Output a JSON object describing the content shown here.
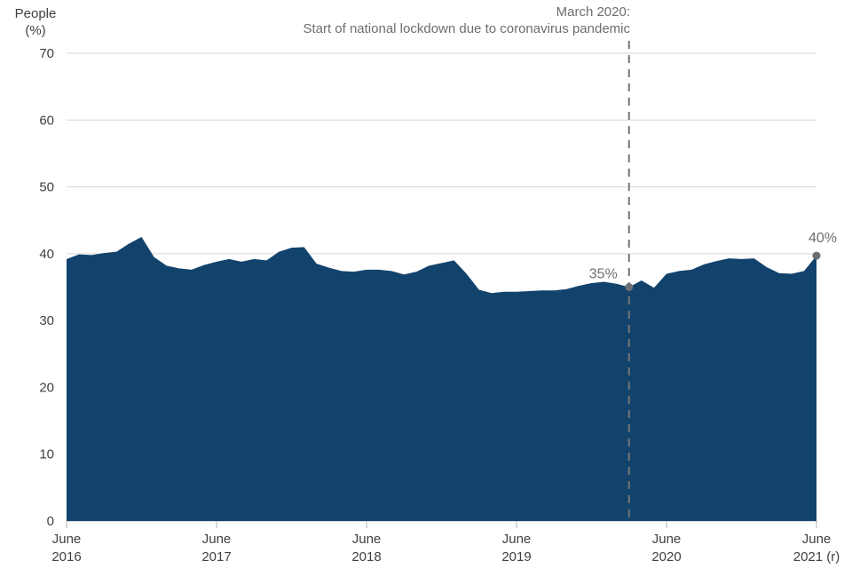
{
  "chart_data": {
    "type": "area",
    "title": "",
    "ylabel_lines": [
      "People",
      "(%)"
    ],
    "annotation_lines": [
      "March 2020:",
      "Start of national lockdown due to coronavirus pandemic"
    ],
    "y_ticks": [
      0,
      10,
      20,
      30,
      40,
      50,
      60,
      70
    ],
    "ylim": [
      0,
      70
    ],
    "x_months_span": 60,
    "x_tick_months": [
      0,
      12,
      24,
      36,
      48,
      60
    ],
    "x_tick_labels": [
      [
        "June",
        "2016"
      ],
      [
        "June",
        "2017"
      ],
      [
        "June",
        "2018"
      ],
      [
        "June",
        "2019"
      ],
      [
        "June",
        "2020"
      ],
      [
        "June",
        "2021 (r)"
      ]
    ],
    "values": [
      39.2,
      39.9,
      39.8,
      40.1,
      40.3,
      41.5,
      42.5,
      39.5,
      38.2,
      37.8,
      37.6,
      38.3,
      38.8,
      39.2,
      38.8,
      39.2,
      39.0,
      40.3,
      40.9,
      41.0,
      38.5,
      37.9,
      37.4,
      37.3,
      37.6,
      37.6,
      37.4,
      36.9,
      37.3,
      38.2,
      38.6,
      39.0,
      37.0,
      34.6,
      34.1,
      34.3,
      34.3,
      34.4,
      34.5,
      34.5,
      34.7,
      35.2,
      35.6,
      35.8,
      35.5,
      35.0,
      36.0,
      34.9,
      37.0,
      37.4,
      37.6,
      38.4,
      38.9,
      39.3,
      39.2,
      39.3,
      38.0,
      37.1,
      37.0,
      37.4,
      39.7
    ],
    "dashed_line_month": 45,
    "markers": [
      {
        "month": 45,
        "value": 35.0,
        "label": "35%",
        "label_pos": "left"
      },
      {
        "month": 60,
        "value": 39.7,
        "label": "40%",
        "label_pos": "above"
      }
    ],
    "legend": "none",
    "grid": "horizontal",
    "colors": {
      "area": "#12436d",
      "grid": "#d6d6d6",
      "axis": "#b3b3b3",
      "dashed": "#757575",
      "marker": "#6d6e71",
      "annotation": "#6d6e71",
      "tick_text": "#404040"
    }
  }
}
